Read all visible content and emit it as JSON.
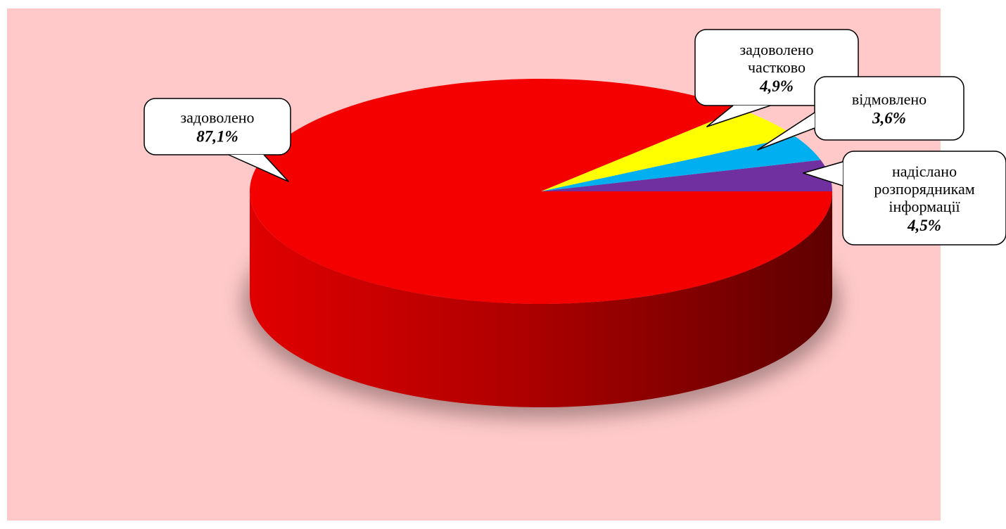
{
  "chart_data": {
    "type": "pie",
    "three_d": true,
    "legend": "none",
    "background_color": "#ffc9c9",
    "slices": [
      {
        "label_lines": [
          "задоволено"
        ],
        "percent_text": "87,1%",
        "value": 87.1,
        "color": "#f50000"
      },
      {
        "label_lines": [
          "задоволено",
          "частково"
        ],
        "percent_text": "4,9%",
        "value": 4.9,
        "color": "#ffff00"
      },
      {
        "label_lines": [
          "відмовлено"
        ],
        "percent_text": "3,6%",
        "value": 3.6,
        "color": "#00aff0"
      },
      {
        "label_lines": [
          "надіслано",
          "розпорядникам",
          "інформації"
        ],
        "percent_text": "4,5%",
        "value": 4.5,
        "color": "#7030a0"
      }
    ]
  }
}
